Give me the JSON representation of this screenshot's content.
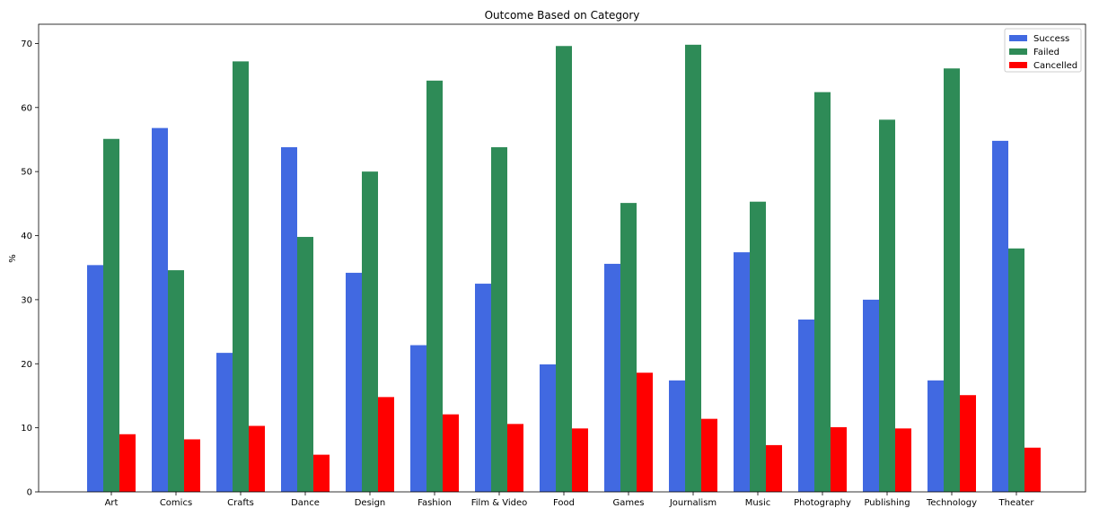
{
  "chart_data": {
    "type": "bar",
    "title": "Outcome Based on Category",
    "xlabel": "",
    "ylabel": "%",
    "ylim": [
      0,
      73
    ],
    "yticks": [
      0,
      10,
      20,
      30,
      40,
      50,
      60,
      70
    ],
    "grid": false,
    "legend_position": "top-right",
    "categories": [
      "Art",
      "Comics",
      "Crafts",
      "Dance",
      "Design",
      "Fashion",
      "Film & Video",
      "Food",
      "Games",
      "Journalism",
      "Music",
      "Photography",
      "Publishing",
      "Technology",
      "Theater"
    ],
    "series": [
      {
        "name": "Success",
        "color": "#4169e1",
        "values": [
          35.4,
          56.8,
          21.7,
          53.8,
          34.2,
          22.9,
          32.5,
          19.9,
          35.6,
          17.4,
          37.4,
          26.9,
          30.0,
          17.4,
          54.8
        ]
      },
      {
        "name": "Failed",
        "color": "#2e8b57",
        "values": [
          55.1,
          34.6,
          67.2,
          39.8,
          50.0,
          64.2,
          53.8,
          69.6,
          45.1,
          69.8,
          45.3,
          62.4,
          58.1,
          66.1,
          38.0
        ]
      },
      {
        "name": "Cancelled",
        "color": "#ff0000",
        "values": [
          9.0,
          8.2,
          10.3,
          5.8,
          14.8,
          12.1,
          10.6,
          9.9,
          18.6,
          11.4,
          7.3,
          10.1,
          9.9,
          15.1,
          6.9
        ]
      }
    ]
  }
}
